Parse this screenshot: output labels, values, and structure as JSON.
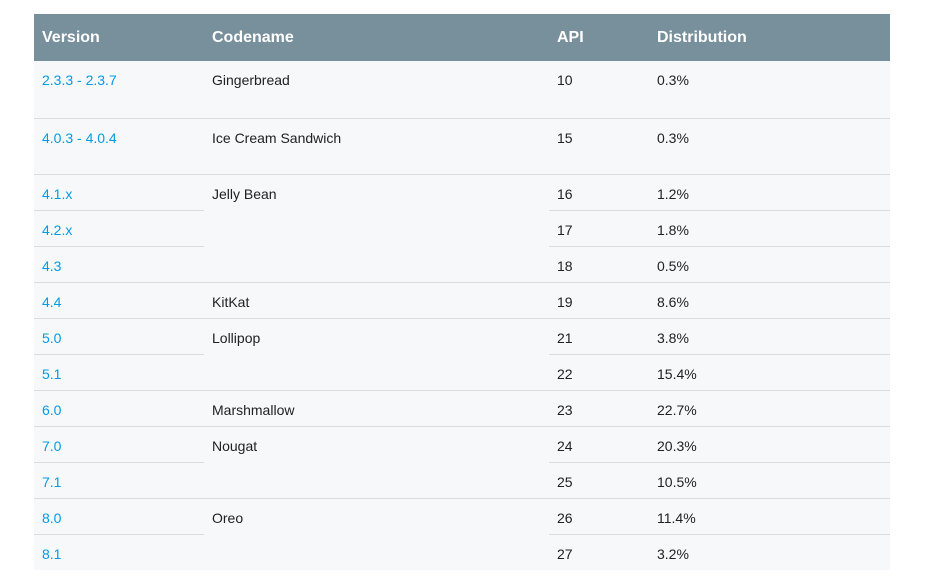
{
  "table": {
    "headers": {
      "version": "Version",
      "codename": "Codename",
      "api": "API",
      "distribution": "Distribution"
    },
    "groups": [
      {
        "codename": "Gingerbread",
        "rows": [
          {
            "version": "2.3.3 - 2.3.7",
            "api": "10",
            "distribution": "0.3%"
          }
        ]
      },
      {
        "codename": "Ice Cream Sandwich",
        "rows": [
          {
            "version": "4.0.3 - 4.0.4",
            "api": "15",
            "distribution": "0.3%"
          }
        ]
      },
      {
        "codename": "Jelly Bean",
        "rows": [
          {
            "version": "4.1.x",
            "api": "16",
            "distribution": "1.2%"
          },
          {
            "version": "4.2.x",
            "api": "17",
            "distribution": "1.8%"
          },
          {
            "version": "4.3",
            "api": "18",
            "distribution": "0.5%"
          }
        ]
      },
      {
        "codename": "KitKat",
        "rows": [
          {
            "version": "4.4",
            "api": "19",
            "distribution": "8.6%"
          }
        ]
      },
      {
        "codename": "Lollipop",
        "rows": [
          {
            "version": "5.0",
            "api": "21",
            "distribution": "3.8%"
          },
          {
            "version": "5.1",
            "api": "22",
            "distribution": "15.4%"
          }
        ]
      },
      {
        "codename": "Marshmallow",
        "rows": [
          {
            "version": "6.0",
            "api": "23",
            "distribution": "22.7%"
          }
        ]
      },
      {
        "codename": "Nougat",
        "rows": [
          {
            "version": "7.0",
            "api": "24",
            "distribution": "20.3%"
          },
          {
            "version": "7.1",
            "api": "25",
            "distribution": "10.5%"
          }
        ]
      },
      {
        "codename": "Oreo",
        "rows": [
          {
            "version": "8.0",
            "api": "26",
            "distribution": "11.4%"
          },
          {
            "version": "8.1",
            "api": "27",
            "distribution": "3.2%"
          }
        ]
      }
    ]
  }
}
